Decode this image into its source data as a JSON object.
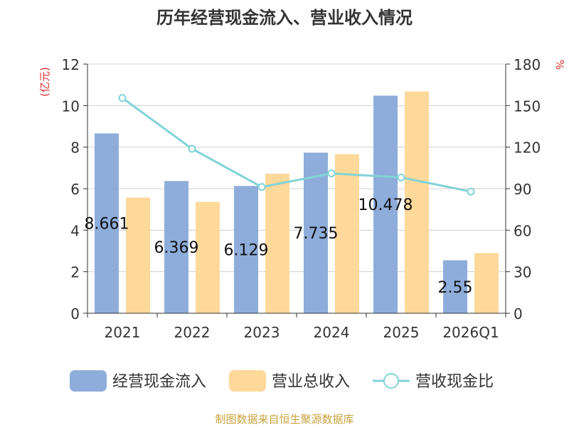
{
  "chart_data": {
    "type": "bar",
    "title": "历年经营现金流入、营业收入情况",
    "left_axis_unit": "(亿元)",
    "right_axis_unit": "%",
    "categories": [
      "2021",
      "2022",
      "2023",
      "2024",
      "2025",
      "2026Q1"
    ],
    "ylim": [
      0,
      12
    ],
    "y_ticks": [
      0,
      2,
      4,
      6,
      8,
      10,
      12
    ],
    "y2lim": [
      0,
      180
    ],
    "y2_ticks": [
      0,
      30,
      60,
      90,
      120,
      150,
      180
    ],
    "grid": true,
    "legend_position": "bottom",
    "series": [
      {
        "name": "经营现金流入",
        "type": "bar",
        "axis": "left",
        "color": "#8EADDA",
        "values": [
          8.661,
          6.369,
          6.129,
          7.735,
          10.478,
          2.55
        ],
        "labels": [
          "8.661",
          "6.369",
          "6.129",
          "7.735",
          "10.478",
          "2.55"
        ]
      },
      {
        "name": "营业总收入",
        "type": "bar",
        "axis": "left",
        "color": "#FFD99A",
        "values": [
          5.57,
          5.36,
          6.72,
          7.66,
          10.68,
          2.9
        ]
      },
      {
        "name": "营收现金比",
        "type": "line",
        "axis": "right",
        "color": "#82D3D6",
        "values": [
          155.5,
          118.8,
          91.2,
          101.0,
          98.1,
          87.9
        ]
      }
    ]
  },
  "source_note": "制图数据来自恒生聚源数据库"
}
